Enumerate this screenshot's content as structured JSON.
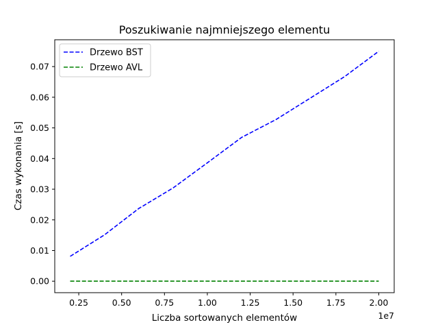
{
  "chart_data": {
    "type": "line",
    "title": "Poszukiwanie najmniejszego elementu",
    "xlabel": "Liczba sortowanych elementów",
    "ylabel": "Czas wykonania [s]",
    "x_offset_label": "1e7",
    "xlim": [
      1100000,
      20900000
    ],
    "ylim": [
      -0.00375,
      0.07875
    ],
    "x_ticks": [
      {
        "value": 2500000,
        "label": "0.25"
      },
      {
        "value": 5000000,
        "label": "0.50"
      },
      {
        "value": 7500000,
        "label": "0.75"
      },
      {
        "value": 10000000,
        "label": "1.00"
      },
      {
        "value": 12500000,
        "label": "1.25"
      },
      {
        "value": 15000000,
        "label": "1.50"
      },
      {
        "value": 17500000,
        "label": "1.75"
      },
      {
        "value": 20000000,
        "label": "2.00"
      }
    ],
    "y_ticks": [
      {
        "value": 0.0,
        "label": "0.00"
      },
      {
        "value": 0.01,
        "label": "0.01"
      },
      {
        "value": 0.02,
        "label": "0.02"
      },
      {
        "value": 0.03,
        "label": "0.03"
      },
      {
        "value": 0.04,
        "label": "0.04"
      },
      {
        "value": 0.05,
        "label": "0.05"
      },
      {
        "value": 0.06,
        "label": "0.06"
      },
      {
        "value": 0.07,
        "label": "0.07"
      }
    ],
    "x": [
      2000000,
      4000000,
      6000000,
      8000000,
      10000000,
      12000000,
      14000000,
      16000000,
      18000000,
      20000000
    ],
    "series": [
      {
        "name": "Drzewo BST",
        "color": "#0000ff",
        "dash": "dashed",
        "values": [
          0.0081,
          0.0151,
          0.0237,
          0.0304,
          0.0386,
          0.0469,
          0.0527,
          0.0597,
          0.0667,
          0.075
        ]
      },
      {
        "name": "Drzewo AVL",
        "color": "#008000",
        "dash": "dashed",
        "values": [
          0.0,
          0.0,
          0.0,
          0.0,
          0.0,
          0.0,
          0.0,
          0.0,
          0.0,
          0.0
        ]
      }
    ],
    "grid": false,
    "legend_position": "top-left"
  }
}
